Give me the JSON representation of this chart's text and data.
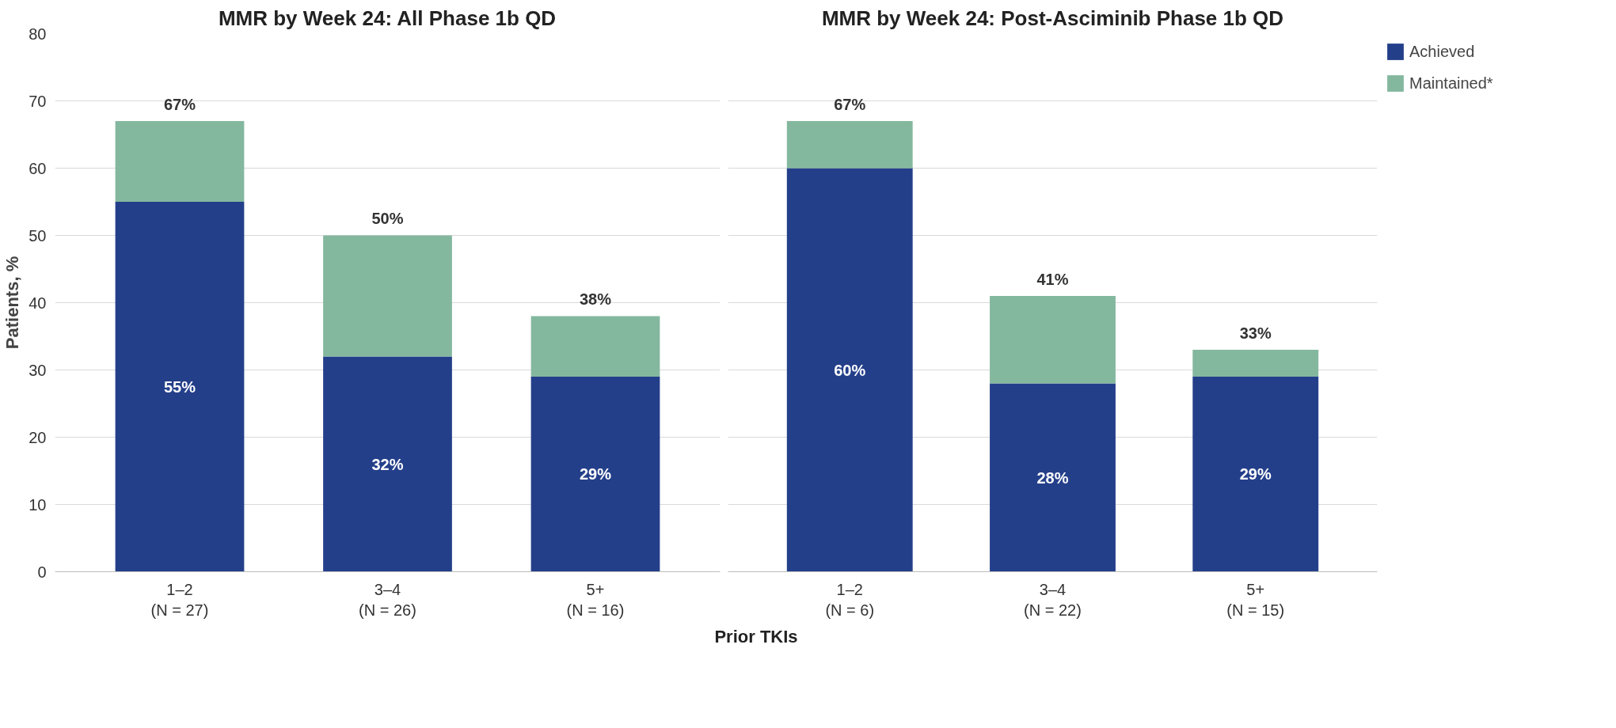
{
  "chart_data": [
    {
      "type": "bar",
      "title": "MMR by Week 24: All Phase 1b QD",
      "ylabel": "Patients, %",
      "xlabel": "Prior TKIs",
      "stacked": true,
      "categories": [
        "1–2\n(N = 27)",
        "3–4\n(N = 26)",
        "5+\n(N = 16)"
      ],
      "series": [
        {
          "color": "#243f8a",
          "values": [
            55,
            32,
            29
          ],
          "value_labels": [
            "55%",
            "32%",
            "29%"
          ]
        },
        {
          "color": "#84b89e",
          "values": [
            12,
            18,
            9
          ]
        }
      ],
      "totals": [
        "67%",
        "50%",
        "38%"
      ],
      "ylim": [
        0,
        80
      ],
      "yticks": [
        0,
        10,
        20,
        30,
        40,
        50,
        60,
        70,
        80
      ],
      "grid": "y",
      "legend": false
    },
    {
      "type": "bar",
      "title": "MMR by Week 24: Post-Asciminib Phase 1b QD",
      "stacked": true,
      "categories": [
        "1–2\n(N = 6)",
        "3–4\n(N = 22)",
        "5+\n(N = 15)"
      ],
      "series": [
        {
          "name": "Achieved",
          "color": "#243f8a",
          "values": [
            60,
            28,
            29
          ],
          "value_labels": [
            "60%",
            "28%",
            "29%"
          ]
        },
        {
          "name": "Maintained*",
          "color": "#84b89e",
          "values": [
            7,
            13,
            4
          ]
        }
      ],
      "totals": [
        "67%",
        "41%",
        "33%"
      ],
      "ylim": [
        0,
        80
      ],
      "yticks": [
        0,
        10,
        20,
        30,
        40,
        50,
        60,
        70,
        80
      ],
      "grid": "y",
      "legend": "right",
      "tick_labels": "x"
    }
  ]
}
